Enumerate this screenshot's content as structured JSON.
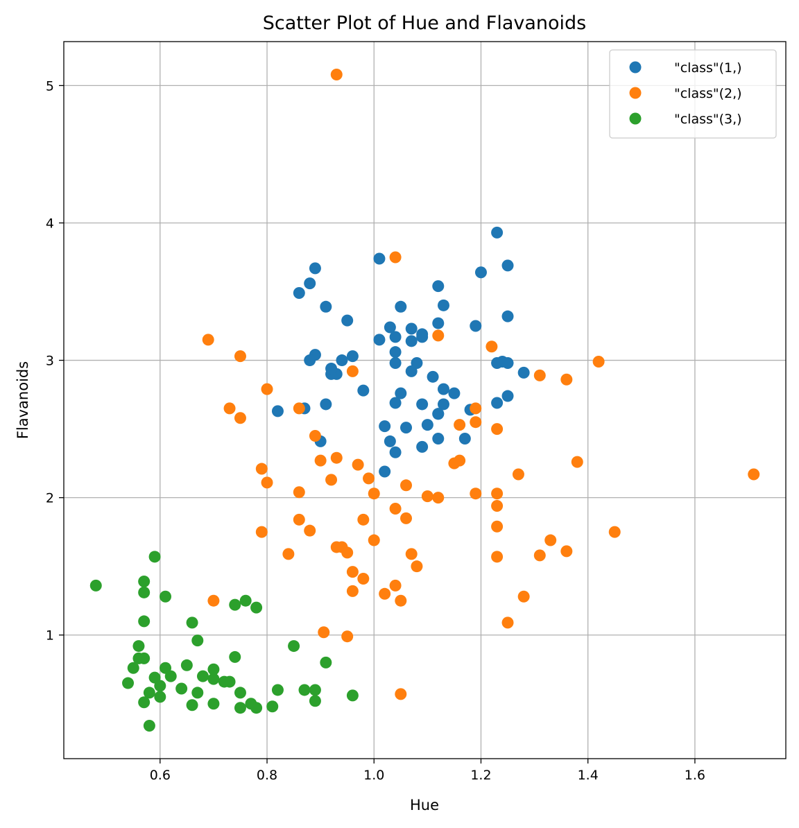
{
  "chart_data": {
    "type": "scatter",
    "title": "Scatter Plot of Hue and Flavanoids",
    "xlabel": "Hue",
    "ylabel": "Flavanoids",
    "xlim": [
      0.42,
      1.77
    ],
    "ylim": [
      0.1,
      5.32
    ],
    "xticks": [
      0.6,
      0.8,
      1.0,
      1.2,
      1.4,
      1.6
    ],
    "xtick_labels": [
      "0.6",
      "0.8",
      "1.0",
      "1.2",
      "1.4",
      "1.6"
    ],
    "yticks": [
      1,
      2,
      3,
      4,
      5
    ],
    "ytick_labels": [
      "1",
      "2",
      "3",
      "4",
      "5"
    ],
    "grid": true,
    "legend_position": "top-right",
    "series": [
      {
        "name": "\"class\"(1,)",
        "color": "#1f77b4",
        "points": [
          [
            1.04,
            3.06
          ],
          [
            1.05,
            2.76
          ],
          [
            1.03,
            3.24
          ],
          [
            0.86,
            3.49
          ],
          [
            1.04,
            2.69
          ],
          [
            1.05,
            3.39
          ],
          [
            1.02,
            2.52
          ],
          [
            1.06,
            2.51
          ],
          [
            1.08,
            2.98
          ],
          [
            1.01,
            3.15
          ],
          [
            1.25,
            3.32
          ],
          [
            1.17,
            2.43
          ],
          [
            1.15,
            2.76
          ],
          [
            1.25,
            3.69
          ],
          [
            1.2,
            3.64
          ],
          [
            1.28,
            2.91
          ],
          [
            1.07,
            3.14
          ],
          [
            1.13,
            3.4
          ],
          [
            1.23,
            3.93
          ],
          [
            0.96,
            3.03
          ],
          [
            1.09,
            3.17
          ],
          [
            0.9,
            2.41
          ],
          [
            1.1,
            2.53
          ],
          [
            1.25,
            2.98
          ],
          [
            1.07,
            2.92
          ],
          [
            1.12,
            3.27
          ],
          [
            1.19,
            3.25
          ],
          [
            0.91,
            2.68
          ],
          [
            0.87,
            2.65
          ],
          [
            1.09,
            2.37
          ],
          [
            1.23,
            2.98
          ],
          [
            1.01,
            3.74
          ],
          [
            1.07,
            3.23
          ],
          [
            1.11,
            2.88
          ],
          [
            1.13,
            2.79
          ],
          [
            1.12,
            2.61
          ],
          [
            1.04,
            2.98
          ],
          [
            0.95,
            3.29
          ],
          [
            1.18,
            2.64
          ],
          [
            1.04,
            2.33
          ],
          [
            1.12,
            2.43
          ],
          [
            1.13,
            2.68
          ],
          [
            0.89,
            3.67
          ],
          [
            0.93,
            2.9
          ],
          [
            0.92,
            2.9
          ],
          [
            1.02,
            2.19
          ],
          [
            1.09,
            2.68
          ],
          [
            1.12,
            3.54
          ],
          [
            0.89,
            3.04
          ],
          [
            0.92,
            2.94
          ],
          [
            1.04,
            3.17
          ],
          [
            0.94,
            3.0
          ],
          [
            0.88,
            3.56
          ],
          [
            1.24,
            2.99
          ],
          [
            1.03,
            2.41
          ],
          [
            1.12,
            2.61
          ],
          [
            0.91,
            3.39
          ],
          [
            0.98,
            2.78
          ],
          [
            1.25,
            2.74
          ],
          [
            1.23,
            2.69
          ],
          [
            0.88,
            3.0
          ],
          [
            0.82,
            2.63
          ],
          [
            1.09,
            3.19
          ]
        ]
      },
      {
        "name": "\"class\"(2,)",
        "color": "#ff7f0e",
        "points": [
          [
            0.93,
            5.08
          ],
          [
            1.04,
            3.75
          ],
          [
            1.12,
            3.18
          ],
          [
            1.22,
            3.1
          ],
          [
            0.69,
            3.15
          ],
          [
            0.75,
            3.03
          ],
          [
            1.42,
            2.99
          ],
          [
            0.96,
            2.92
          ],
          [
            1.31,
            2.89
          ],
          [
            1.36,
            2.86
          ],
          [
            0.8,
            2.79
          ],
          [
            0.73,
            2.65
          ],
          [
            0.86,
            2.65
          ],
          [
            1.19,
            2.65
          ],
          [
            0.75,
            2.58
          ],
          [
            1.19,
            2.55
          ],
          [
            1.16,
            2.53
          ],
          [
            1.23,
            2.5
          ],
          [
            0.89,
            2.45
          ],
          [
            0.93,
            2.29
          ],
          [
            0.9,
            2.27
          ],
          [
            1.16,
            2.27
          ],
          [
            1.38,
            2.26
          ],
          [
            1.15,
            2.25
          ],
          [
            0.97,
            2.24
          ],
          [
            0.79,
            2.21
          ],
          [
            1.27,
            2.17
          ],
          [
            1.71,
            2.17
          ],
          [
            0.99,
            2.14
          ],
          [
            0.92,
            2.13
          ],
          [
            0.8,
            2.11
          ],
          [
            1.06,
            2.09
          ],
          [
            0.86,
            2.04
          ],
          [
            1.0,
            2.03
          ],
          [
            1.19,
            2.03
          ],
          [
            1.23,
            2.03
          ],
          [
            1.1,
            2.01
          ],
          [
            1.12,
            2.0
          ],
          [
            1.23,
            1.94
          ],
          [
            1.04,
            1.92
          ],
          [
            0.86,
            1.84
          ],
          [
            0.98,
            1.84
          ],
          [
            1.06,
            1.85
          ],
          [
            1.23,
            1.79
          ],
          [
            0.79,
            1.75
          ],
          [
            0.88,
            1.76
          ],
          [
            1.45,
            1.75
          ],
          [
            1.33,
            1.69
          ],
          [
            1.0,
            1.69
          ],
          [
            0.93,
            1.64
          ],
          [
            0.94,
            1.64
          ],
          [
            1.36,
            1.61
          ],
          [
            0.95,
            1.6
          ],
          [
            0.84,
            1.59
          ],
          [
            1.07,
            1.59
          ],
          [
            1.31,
            1.58
          ],
          [
            1.23,
            1.57
          ],
          [
            1.08,
            1.5
          ],
          [
            0.96,
            1.46
          ],
          [
            0.98,
            1.41
          ],
          [
            1.04,
            1.36
          ],
          [
            0.96,
            1.32
          ],
          [
            1.02,
            1.3
          ],
          [
            1.28,
            1.28
          ],
          [
            0.7,
            1.25
          ],
          [
            1.05,
            1.25
          ],
          [
            1.25,
            1.09
          ],
          [
            0.906,
            1.02
          ],
          [
            0.95,
            0.99
          ],
          [
            1.05,
            0.57
          ]
        ]
      },
      {
        "name": "\"class\"(3,)",
        "color": "#2ca02c",
        "points": [
          [
            0.48,
            1.36
          ],
          [
            0.59,
            1.57
          ],
          [
            0.57,
            1.39
          ],
          [
            0.57,
            1.31
          ],
          [
            0.61,
            1.28
          ],
          [
            0.76,
            1.25
          ],
          [
            0.74,
            1.22
          ],
          [
            0.78,
            1.2
          ],
          [
            0.57,
            1.1
          ],
          [
            0.66,
            1.09
          ],
          [
            0.67,
            0.96
          ],
          [
            0.56,
            0.92
          ],
          [
            0.85,
            0.92
          ],
          [
            0.56,
            0.83
          ],
          [
            0.57,
            0.83
          ],
          [
            0.74,
            0.84
          ],
          [
            0.91,
            0.8
          ],
          [
            0.65,
            0.78
          ],
          [
            0.55,
            0.76
          ],
          [
            0.61,
            0.76
          ],
          [
            0.7,
            0.75
          ],
          [
            0.62,
            0.7
          ],
          [
            0.68,
            0.7
          ],
          [
            0.59,
            0.69
          ],
          [
            0.7,
            0.68
          ],
          [
            0.72,
            0.66
          ],
          [
            0.73,
            0.66
          ],
          [
            0.54,
            0.65
          ],
          [
            0.6,
            0.63
          ],
          [
            0.64,
            0.61
          ],
          [
            0.82,
            0.6
          ],
          [
            0.87,
            0.6
          ],
          [
            0.89,
            0.6
          ],
          [
            0.58,
            0.58
          ],
          [
            0.67,
            0.58
          ],
          [
            0.75,
            0.58
          ],
          [
            0.96,
            0.56
          ],
          [
            0.6,
            0.55
          ],
          [
            0.89,
            0.52
          ],
          [
            0.57,
            0.51
          ],
          [
            0.7,
            0.5
          ],
          [
            0.77,
            0.5
          ],
          [
            0.66,
            0.49
          ],
          [
            0.81,
            0.48
          ],
          [
            0.75,
            0.47
          ],
          [
            0.78,
            0.47
          ],
          [
            0.58,
            0.34
          ]
        ]
      }
    ]
  }
}
